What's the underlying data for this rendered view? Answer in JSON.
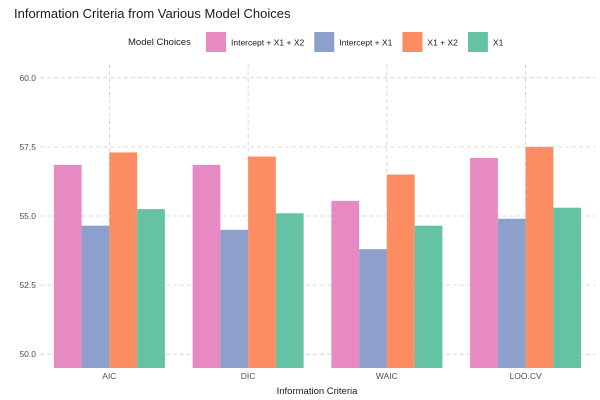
{
  "chart_data": {
    "type": "bar",
    "title": "Information Criteria from Various Model Choices",
    "xlabel": "Information Criteria",
    "ylabel": "",
    "categories": [
      "AIC",
      "DIC",
      "WAIC",
      "LOO.CV"
    ],
    "series": [
      {
        "name": "Intercept + X1 + X2",
        "color": "#e78ac3",
        "values": [
          56.85,
          56.85,
          55.55,
          57.1
        ]
      },
      {
        "name": "Intercept + X1",
        "color": "#8da0cb",
        "values": [
          54.65,
          54.5,
          53.8,
          54.9
        ]
      },
      {
        "name": "X1 + X2",
        "color": "#fc8d62",
        "values": [
          57.3,
          57.15,
          56.5,
          57.5
        ]
      },
      {
        "name": "X1",
        "color": "#66c2a5",
        "values": [
          55.25,
          55.1,
          54.65,
          55.3
        ]
      }
    ],
    "ylim": [
      49.5,
      60.5
    ],
    "yticks": [
      "50.0",
      "52.5",
      "55.0",
      "57.5",
      "60.0"
    ],
    "legend_title": "Model Choices",
    "legend_position": "top",
    "grid": true
  }
}
